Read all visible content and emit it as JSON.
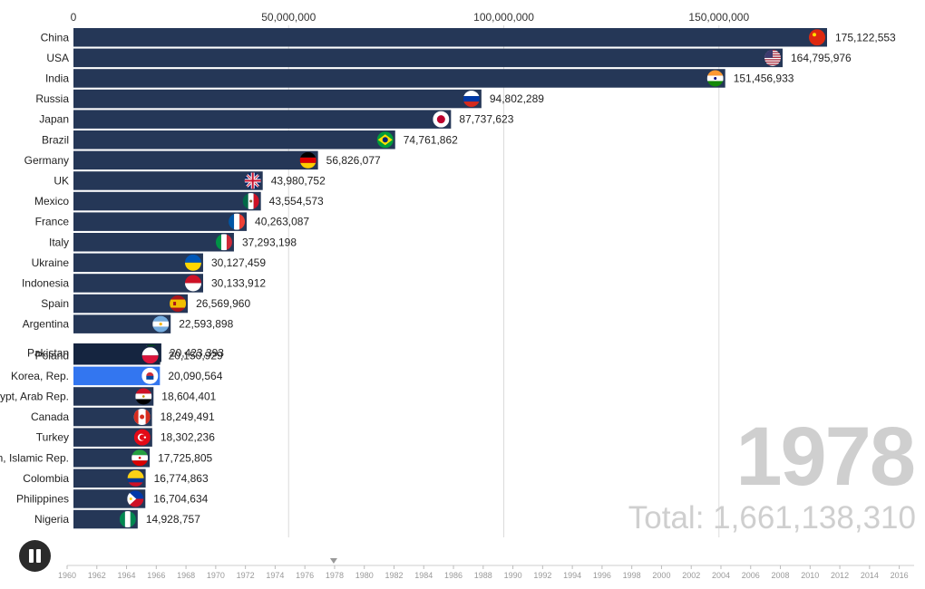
{
  "chart_data": {
    "type": "bar",
    "orientation": "horizontal",
    "year": "1978",
    "total_label": "Total: 1,661,138,310",
    "x_ticks": [
      {
        "value": 0,
        "label": "0"
      },
      {
        "value": 50000000,
        "label": "50,000,000"
      },
      {
        "value": 100000000,
        "label": "100,000,000"
      },
      {
        "value": 150000000,
        "label": "150,000,000"
      }
    ],
    "xlim": [
      0,
      175122553
    ],
    "bar_color": "#253757",
    "highlight_color": "#3376f0",
    "series": [
      {
        "label": "China",
        "value": 175122553,
        "value_label": "175,122,553",
        "flag": "china-flag-icon"
      },
      {
        "label": "USA",
        "value": 164795976,
        "value_label": "164,795,976",
        "flag": "usa-flag-icon"
      },
      {
        "label": "India",
        "value": 151456933,
        "value_label": "151,456,933",
        "flag": "india-flag-icon"
      },
      {
        "label": "Russia",
        "value": 94802289,
        "value_label": "94,802,289",
        "flag": "russia-flag-icon"
      },
      {
        "label": "Japan",
        "value": 87737623,
        "value_label": "87,737,623",
        "flag": "japan-flag-icon"
      },
      {
        "label": "Brazil",
        "value": 74761862,
        "value_label": "74,761,862",
        "flag": "brazil-flag-icon"
      },
      {
        "label": "Germany",
        "value": 56826077,
        "value_label": "56,826,077",
        "flag": "germany-flag-icon"
      },
      {
        "label": "UK",
        "value": 43980752,
        "value_label": "43,980,752",
        "flag": "uk-flag-icon"
      },
      {
        "label": "Mexico",
        "value": 43554573,
        "value_label": "43,554,573",
        "flag": "mexico-flag-icon"
      },
      {
        "label": "France",
        "value": 40263087,
        "value_label": "40,263,087",
        "flag": "france-flag-icon"
      },
      {
        "label": "Italy",
        "value": 37293198,
        "value_label": "37,293,198",
        "flag": "italy-flag-icon"
      },
      {
        "label": "Ukraine",
        "value": 30127459,
        "value_label": "30,127,459",
        "flag": "ukraine-flag-icon"
      },
      {
        "label": "Indonesia",
        "value": 30133912,
        "value_label": "30,133,912",
        "flag": "indonesia-flag-icon"
      },
      {
        "label": "Spain",
        "value": 26569960,
        "value_label": "26,569,960",
        "flag": "spain-flag-icon"
      },
      {
        "label": "Argentina",
        "value": 22593898,
        "value_label": "22,593,898",
        "flag": "argentina-flag-icon"
      },
      {
        "label": "Pakistan",
        "value": 20423393,
        "value_label": "20,423,393",
        "flag": "pakistan-flag-icon",
        "overlap": true
      },
      {
        "label": "Poland",
        "value": 20150929,
        "value_label": "20,150,929",
        "flag": "poland-flag-icon",
        "overlap": true
      },
      {
        "label": "Korea, Rep.",
        "value": 20090564,
        "value_label": "20,090,564",
        "flag": "korea-flag-icon",
        "highlight": true
      },
      {
        "label": "Egypt, Arab Rep.",
        "value": 18604401,
        "value_label": "18,604,401",
        "flag": "egypt-flag-icon"
      },
      {
        "label": "Canada",
        "value": 18249491,
        "value_label": "18,249,491",
        "flag": "canada-flag-icon"
      },
      {
        "label": "Turkey",
        "value": 18302236,
        "value_label": "18,302,236",
        "flag": "turkey-flag-icon"
      },
      {
        "label": "Iran, Islamic Rep.",
        "value": 17725805,
        "value_label": "17,725,805",
        "flag": "iran-flag-icon"
      },
      {
        "label": "Colombia",
        "value": 16774863,
        "value_label": "16,774,863",
        "flag": "colombia-flag-icon"
      },
      {
        "label": "Philippines",
        "value": 16704634,
        "value_label": "16,704,634",
        "flag": "philippines-flag-icon"
      },
      {
        "label": "Nigeria",
        "value": 14928757,
        "value_label": "14,928,757",
        "flag": "nigeria-flag-icon"
      }
    ]
  },
  "controls": {
    "play_pause_icon": "pause-icon"
  },
  "timeline": {
    "current_year": 1978,
    "years": [
      "1960",
      "1962",
      "1964",
      "1966",
      "1968",
      "1970",
      "1972",
      "1974",
      "1976",
      "1978",
      "1980",
      "1982",
      "1984",
      "1986",
      "1988",
      "1990",
      "1992",
      "1994",
      "1996",
      "1998",
      "2000",
      "2002",
      "2004",
      "2006",
      "2008",
      "2010",
      "2012",
      "2014",
      "2016"
    ]
  }
}
